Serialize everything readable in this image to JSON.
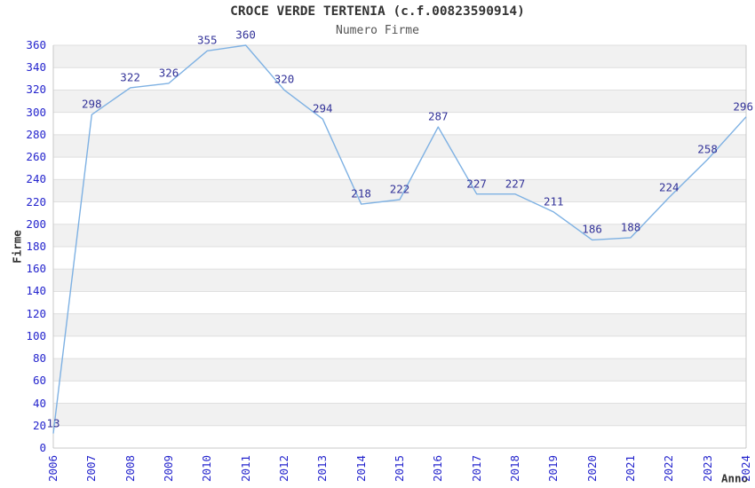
{
  "colors": {
    "line": "#7eb1e3",
    "tick_label": "#2525cd",
    "data_label": "#333399",
    "band": "#f1f1f1",
    "grid": "#dfdfdf",
    "border": "#c9c9c9",
    "title": "#333333",
    "subtitle": "#555555",
    "axis_title": "#333333",
    "background": "#ffffff"
  },
  "chart_data": {
    "type": "line",
    "title": "CROCE VERDE TERTENIA (c.f.00823590914)",
    "subtitle": "Numero Firme",
    "xlabel": "Anno",
    "ylabel": "Firme",
    "x": [
      "2006",
      "2007",
      "2008",
      "2009",
      "2010",
      "2011",
      "2012",
      "2013",
      "2014",
      "2015",
      "2016",
      "2017",
      "2018",
      "2019",
      "2020",
      "2021",
      "2022",
      "2023",
      "2024"
    ],
    "series": [
      {
        "name": "Numero Firme",
        "values": [
          13,
          298,
          322,
          326,
          355,
          360,
          320,
          294,
          218,
          222,
          287,
          227,
          227,
          211,
          186,
          188,
          224,
          258,
          296
        ]
      }
    ],
    "point_labels_visible": true,
    "ylim": [
      0,
      360
    ],
    "ytick_step": 20,
    "grid": "horizontal-gridlines-with-alternating-bands",
    "legend": "none"
  }
}
